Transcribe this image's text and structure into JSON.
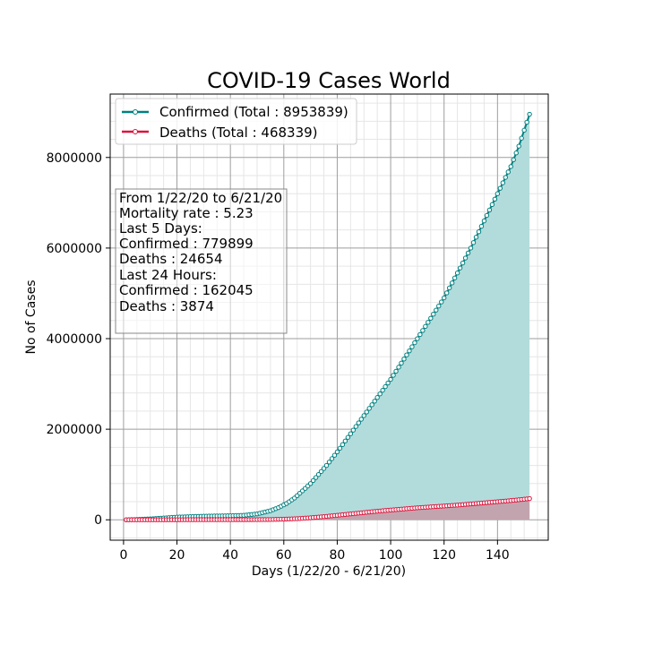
{
  "chart_data": {
    "type": "line",
    "title": "COVID-19 Cases World",
    "xlabel": "Days (1/22/20 - 6/21/20)",
    "ylabel": "No of Cases",
    "xlim": [
      -5,
      159
    ],
    "ylim": [
      -450000,
      9400000
    ],
    "x_ticks": [
      0,
      20,
      40,
      60,
      80,
      100,
      120,
      140
    ],
    "y_ticks": [
      0,
      2000000,
      4000000,
      6000000,
      8000000
    ],
    "grid": true,
    "legend_position": "top-left",
    "series": [
      {
        "name": "Confirmed (Total : 8953839)",
        "color": "#008080",
        "fill_color": "#b2dcdc",
        "anchors": [
          [
            1,
            555
          ],
          [
            10,
            20000
          ],
          [
            20,
            60000
          ],
          [
            30,
            80000
          ],
          [
            40,
            90000
          ],
          [
            45,
            100000
          ],
          [
            50,
            130000
          ],
          [
            55,
            200000
          ],
          [
            58,
            270000
          ],
          [
            61,
            360000
          ],
          [
            64,
            480000
          ],
          [
            67,
            640000
          ],
          [
            70,
            800000
          ],
          [
            73,
            1000000
          ],
          [
            76,
            1200000
          ],
          [
            80,
            1500000
          ],
          [
            85,
            1900000
          ],
          [
            90,
            2300000
          ],
          [
            95,
            2700000
          ],
          [
            100,
            3100000
          ],
          [
            105,
            3550000
          ],
          [
            110,
            4000000
          ],
          [
            115,
            4450000
          ],
          [
            120,
            4900000
          ],
          [
            125,
            5450000
          ],
          [
            130,
            6000000
          ],
          [
            135,
            6600000
          ],
          [
            140,
            7200000
          ],
          [
            145,
            7800000
          ],
          [
            148,
            8250000
          ],
          [
            152,
            8953839
          ]
        ]
      },
      {
        "name": "Deaths (Total : 468339)",
        "color": "#dc143c",
        "fill_color": "#c49aa6",
        "anchors": [
          [
            1,
            17
          ],
          [
            20,
            1700
          ],
          [
            30,
            3000
          ],
          [
            40,
            3500
          ],
          [
            50,
            4500
          ],
          [
            55,
            7000
          ],
          [
            60,
            14000
          ],
          [
            65,
            25000
          ],
          [
            70,
            45000
          ],
          [
            75,
            70000
          ],
          [
            80,
            100000
          ],
          [
            85,
            130000
          ],
          [
            90,
            160000
          ],
          [
            95,
            190000
          ],
          [
            100,
            215000
          ],
          [
            105,
            240000
          ],
          [
            110,
            265000
          ],
          [
            115,
            285000
          ],
          [
            120,
            305000
          ],
          [
            125,
            325000
          ],
          [
            130,
            350000
          ],
          [
            135,
            375000
          ],
          [
            140,
            400000
          ],
          [
            145,
            425000
          ],
          [
            150,
            455000
          ],
          [
            152,
            468339
          ]
        ]
      }
    ],
    "annotation_lines": [
      "From 1/22/20 to 6/21/20",
      "Mortality rate : 5.23",
      "Last 5 Days:",
      "Confirmed : 779899",
      "Deaths : 24654",
      "Last 24 Hours:",
      "Confirmed : 162045",
      "Deaths : 3874"
    ]
  }
}
